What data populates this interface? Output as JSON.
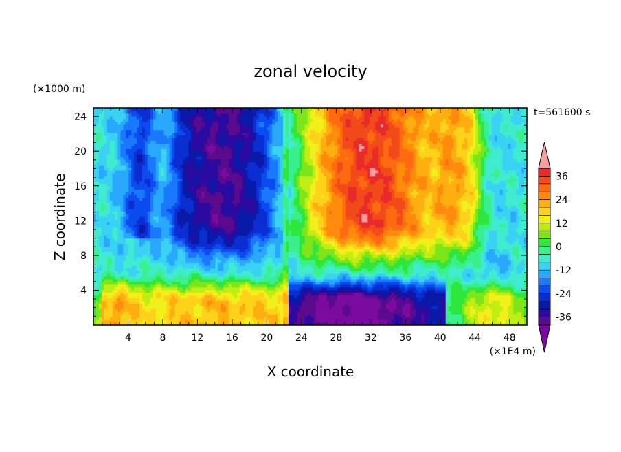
{
  "chart_data": {
    "type": "heatmap",
    "title": "zonal velocity",
    "xlabel": "X coordinate",
    "ylabel": "Z coordinate",
    "x_unit": "(×1E4 m)",
    "y_unit": "(×1000 m)",
    "time_label": "t=561600 s",
    "xlim": [
      0,
      50
    ],
    "ylim": [
      0,
      25
    ],
    "x_ticks": [
      4,
      8,
      12,
      16,
      20,
      24,
      28,
      32,
      36,
      40,
      44,
      48
    ],
    "y_ticks": [
      4,
      8,
      12,
      16,
      20,
      24
    ],
    "colorbar": {
      "levels": [
        -40,
        -36,
        -32,
        -28,
        -24,
        -20,
        -16,
        -12,
        -8,
        -4,
        0,
        4,
        8,
        12,
        16,
        20,
        24,
        28,
        32,
        36,
        40
      ],
      "tick_labels": [
        "-36",
        "-24",
        "-12",
        "0",
        "12",
        "24",
        "36"
      ],
      "colors": [
        "#5a0a8c",
        "#2a0aa0",
        "#0a1aa8",
        "#0a2ed2",
        "#0a4cf0",
        "#1a78ff",
        "#28a8ff",
        "#3ad2f2",
        "#40ecd0",
        "#3af08c",
        "#2ee63c",
        "#7ce61a",
        "#c0ee12",
        "#f2f01a",
        "#ffd21a",
        "#ffae10",
        "#ff8a0c",
        "#ff6a10",
        "#f24a18",
        "#e82a2a"
      ],
      "under_color": "#7a0aa0",
      "over_color": "#f4a0a0"
    },
    "grid": false
  }
}
